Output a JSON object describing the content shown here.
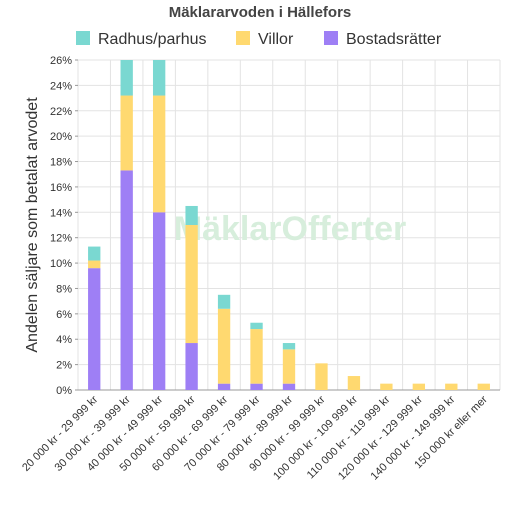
{
  "chart_data": {
    "type": "bar",
    "stacked": true,
    "title": "Mäklararvoden i Hällefors",
    "ylabel": "Andelen säljare som betalat arvodet",
    "xlabel": "",
    "ylim": [
      0,
      26
    ],
    "yticks": [
      "0%",
      "2%",
      "4%",
      "6%",
      "8%",
      "10%",
      "12%",
      "14%",
      "16%",
      "18%",
      "20%",
      "22%",
      "24%",
      "26%"
    ],
    "ytick_values": [
      0,
      2,
      4,
      6,
      8,
      10,
      12,
      14,
      16,
      18,
      20,
      22,
      24,
      26
    ],
    "grid": true,
    "legend_position": "top",
    "watermark": "MäklarOfferter",
    "categories": [
      "20 000 kr - 29 999 kr",
      "30 000 kr - 39 999 kr",
      "40 000 kr - 49 999 kr",
      "50 000 kr - 59 999 kr",
      "60 000 kr - 69 999 kr",
      "70 000 kr - 79 999 kr",
      "80 000 kr - 89 999 kr",
      "90 000 kr - 99 999 kr",
      "100 000 kr - 109 999 kr",
      "110 000 kr - 119 999 kr",
      "120 000 kr - 129 999 kr",
      "140 000 kr - 149 999 kr",
      "150 000 kr eller mer"
    ],
    "series": [
      {
        "name": "Bostadsrätter",
        "color": "#9e7ff5",
        "values": [
          9.6,
          17.3,
          14.0,
          3.7,
          0.5,
          0.5,
          0.5,
          0,
          0,
          0,
          0,
          0,
          0
        ]
      },
      {
        "name": "Villor",
        "color": "#ffd970",
        "values": [
          0.6,
          5.9,
          9.2,
          9.3,
          5.9,
          4.3,
          2.7,
          2.1,
          1.1,
          0.5,
          0.5,
          0.5,
          0.5
        ]
      },
      {
        "name": "Radhus/parhus",
        "color": "#7ad8d1",
        "values": [
          1.1,
          2.8,
          2.8,
          1.5,
          1.1,
          0.5,
          0.5,
          0,
          0,
          0,
          0,
          0,
          0
        ]
      }
    ],
    "legend_order": [
      "Radhus/parhus",
      "Villor",
      "Bostadsrätter"
    ]
  }
}
